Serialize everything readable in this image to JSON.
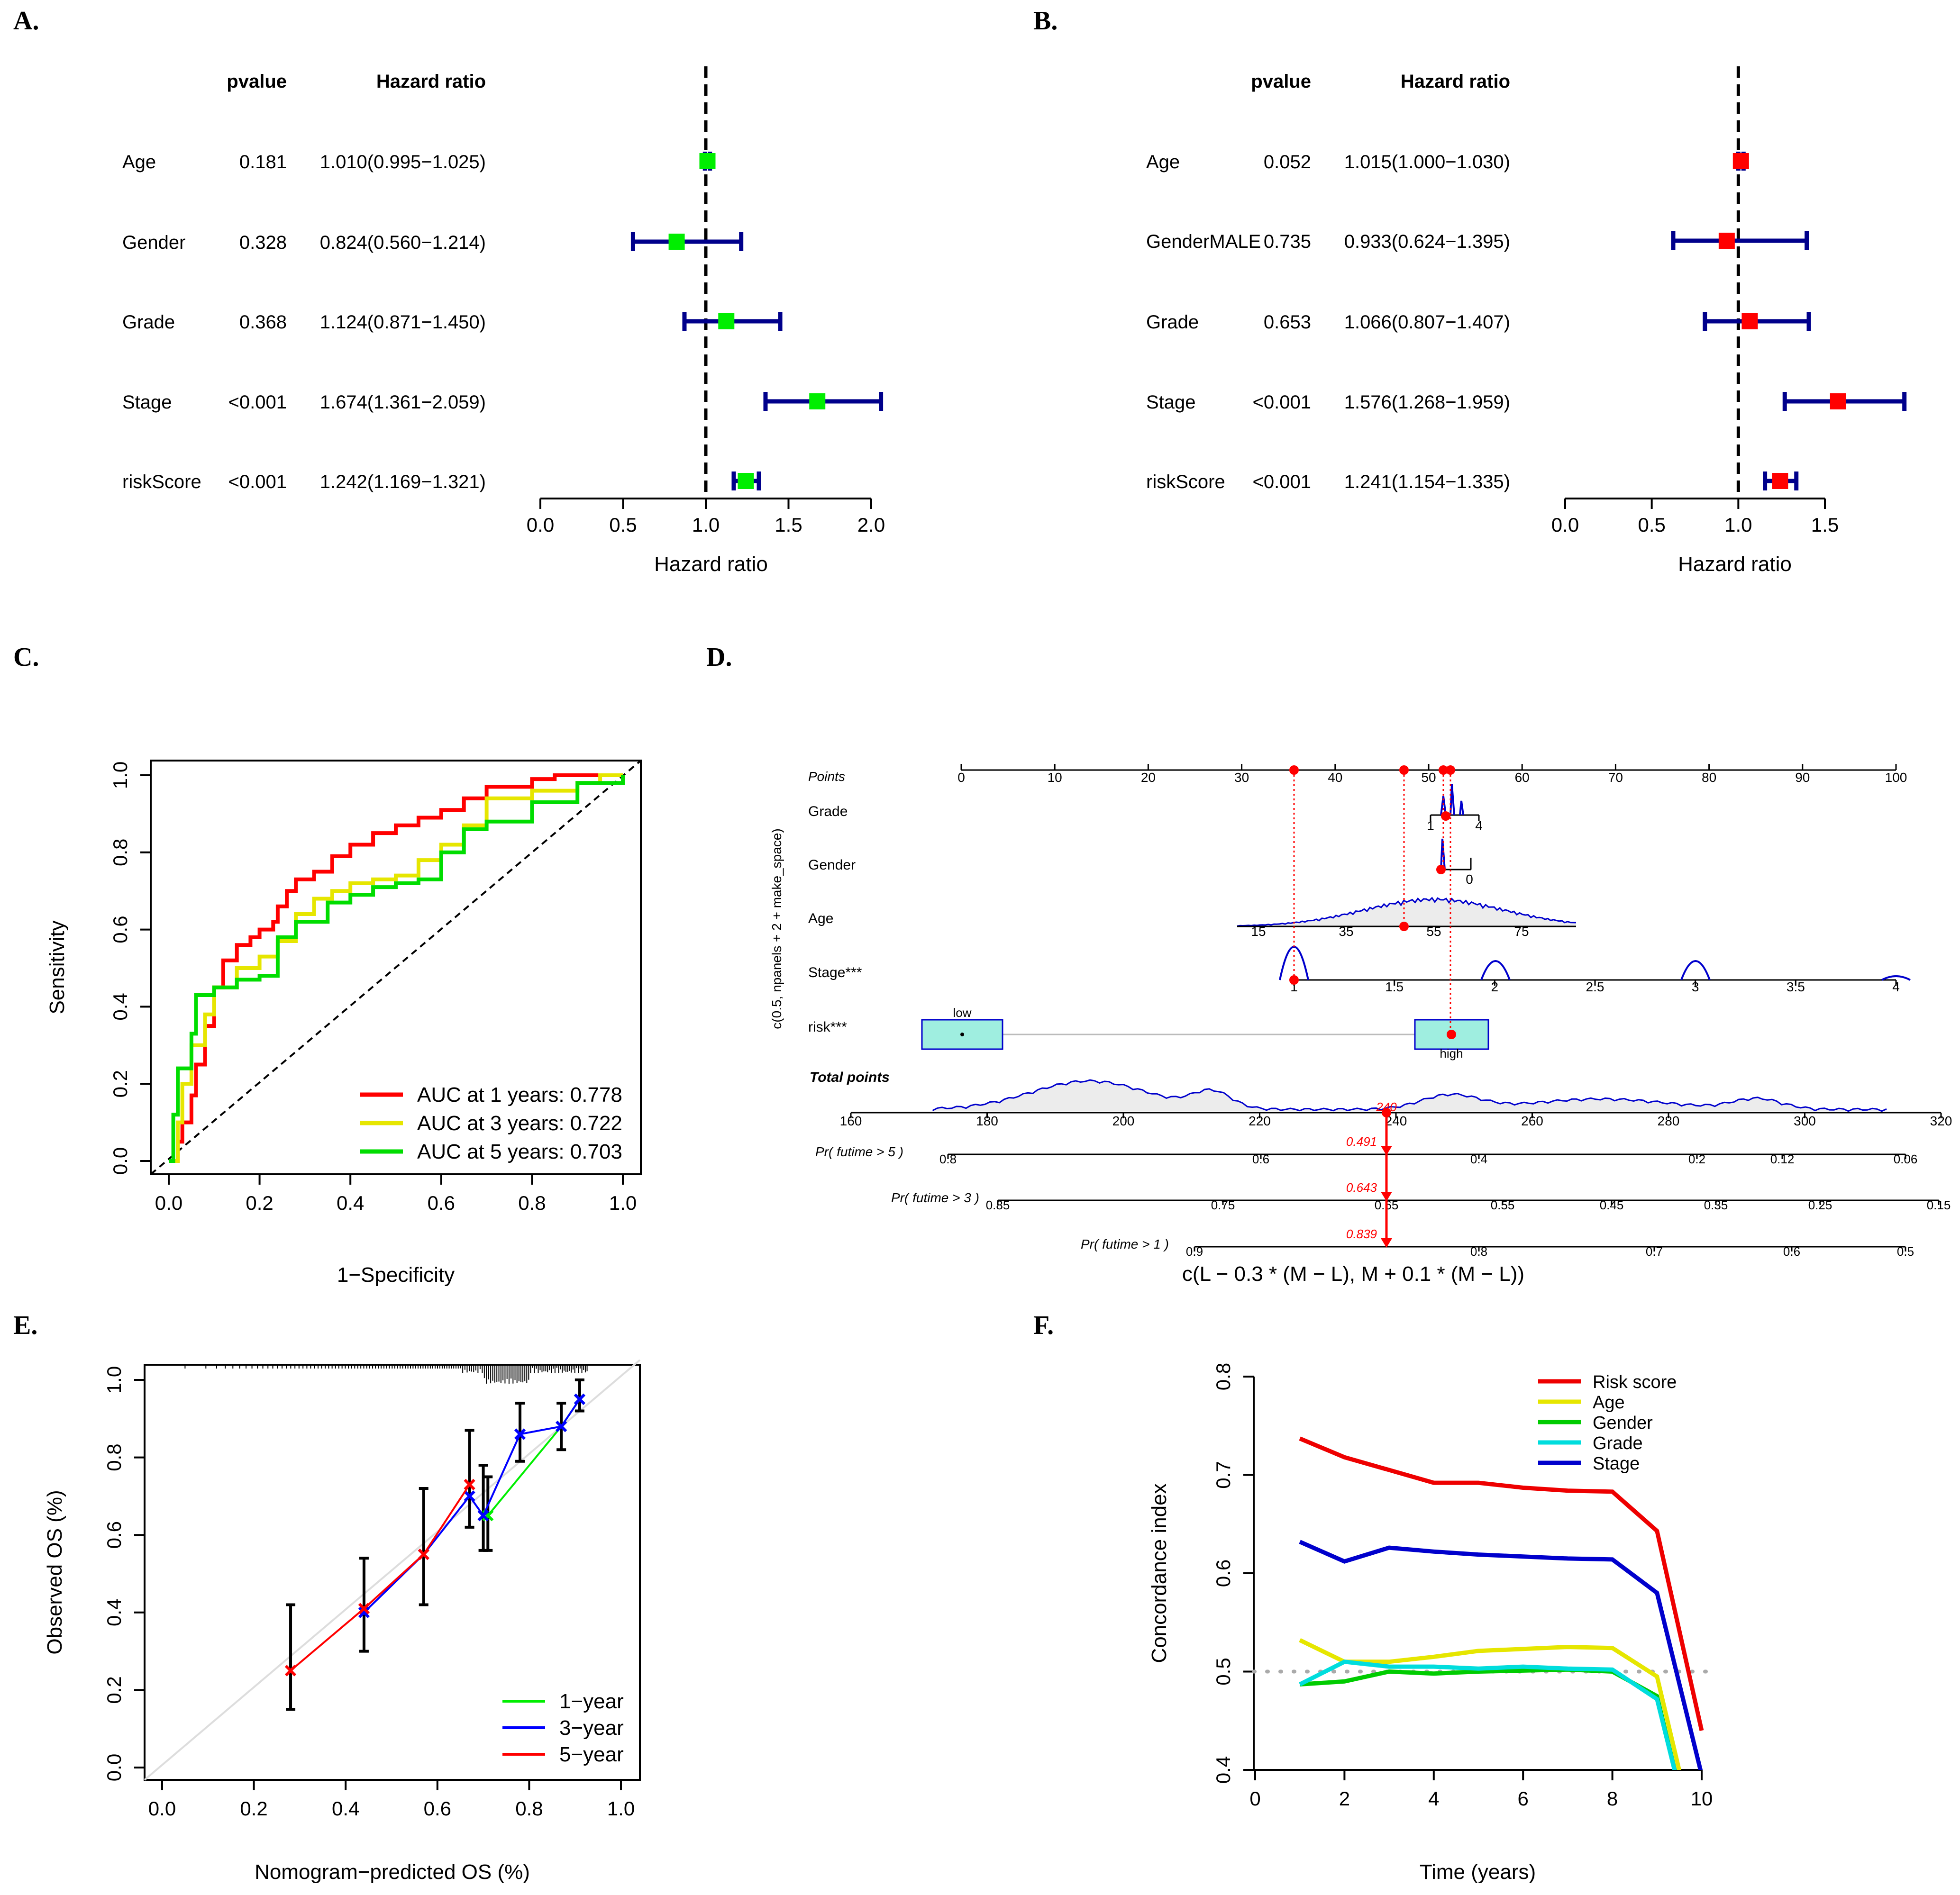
{
  "figure": {
    "panel_labels": [
      "A.",
      "B.",
      "C.",
      "D.",
      "E.",
      "F."
    ]
  },
  "chart_data": [
    {
      "panel": "A.",
      "type": "forest",
      "headers": {
        "pvalue": "pvalue",
        "hr": "Hazard ratio"
      },
      "rows": [
        {
          "label": "Age",
          "pvalue": "0.181",
          "hr_text": "1.010(0.995−1.025)",
          "hr": 1.01,
          "lo": 0.995,
          "hi": 1.025
        },
        {
          "label": "Gender",
          "pvalue": "0.328",
          "hr_text": "0.824(0.560−1.214)",
          "hr": 0.824,
          "lo": 0.56,
          "hi": 1.214
        },
        {
          "label": "Grade",
          "pvalue": "0.368",
          "hr_text": "1.124(0.871−1.450)",
          "hr": 1.124,
          "lo": 0.871,
          "hi": 1.45
        },
        {
          "label": "Stage",
          "pvalue": "<0.001",
          "hr_text": "1.674(1.361−2.059)",
          "hr": 1.674,
          "lo": 1.361,
          "hi": 2.059
        },
        {
          "label": "riskScore",
          "pvalue": "<0.001",
          "hr_text": "1.242(1.169−1.321)",
          "hr": 1.242,
          "lo": 1.169,
          "hi": 1.321
        }
      ],
      "xlim": [
        0,
        2.0
      ],
      "ticks": [
        "0.0",
        "0.5",
        "1.0",
        "1.5",
        "2.0"
      ],
      "tick_values": [
        0,
        0.5,
        1.0,
        1.5,
        2.0
      ],
      "reference": 1,
      "xlabel": "Hazard ratio",
      "colors": {
        "marker": "#00ee00",
        "ci": "#00008b"
      }
    },
    {
      "panel": "B.",
      "type": "forest",
      "headers": {
        "pvalue": "pvalue",
        "hr": "Hazard ratio"
      },
      "rows": [
        {
          "label": "Age",
          "pvalue": "0.052",
          "hr_text": "1.015(1.000−1.030)",
          "hr": 1.015,
          "lo": 1.0,
          "hi": 1.03
        },
        {
          "label": "GenderMALE",
          "pvalue": "0.735",
          "hr_text": "0.933(0.624−1.395)",
          "hr": 0.933,
          "lo": 0.624,
          "hi": 1.395
        },
        {
          "label": "Grade",
          "pvalue": "0.653",
          "hr_text": "1.066(0.807−1.407)",
          "hr": 1.066,
          "lo": 0.807,
          "hi": 1.407
        },
        {
          "label": "Stage",
          "pvalue": "<0.001",
          "hr_text": "1.576(1.268−1.959)",
          "hr": 1.576,
          "lo": 1.268,
          "hi": 1.959
        },
        {
          "label": "riskScore",
          "pvalue": "<0.001",
          "hr_text": "1.241(1.154−1.335)",
          "hr": 1.241,
          "lo": 1.154,
          "hi": 1.335
        }
      ],
      "xlim": [
        0,
        1.5
      ],
      "ticks": [
        "0.0",
        "0.5",
        "1.0",
        "1.5"
      ],
      "tick_values": [
        0,
        0.5,
        1.0,
        1.5
      ],
      "reference": 1,
      "xlabel": "Hazard ratio",
      "colors": {
        "marker": "#ff0000",
        "ci": "#00008b"
      }
    },
    {
      "panel": "C.",
      "type": "line",
      "subtype": "roc",
      "xlabel": "1−Specificity",
      "ylabel": "Sensitivity",
      "xlim": [
        0,
        1
      ],
      "ylim": [
        0,
        1
      ],
      "xticks": [
        "0.0",
        "0.2",
        "0.4",
        "0.6",
        "0.8",
        "1.0"
      ],
      "yticks": [
        "0.0",
        "0.2",
        "0.4",
        "0.6",
        "0.8",
        "1.0"
      ],
      "legend_position": "bottom-right",
      "series": [
        {
          "name": "AUC at 1 years: 0.778",
          "color": "#ff0000",
          "points": [
            [
              0,
              0
            ],
            [
              0.02,
              0.05
            ],
            [
              0.03,
              0.1
            ],
            [
              0.05,
              0.17
            ],
            [
              0.06,
              0.25
            ],
            [
              0.08,
              0.35
            ],
            [
              0.1,
              0.45
            ],
            [
              0.12,
              0.52
            ],
            [
              0.15,
              0.56
            ],
            [
              0.18,
              0.58
            ],
            [
              0.2,
              0.6
            ],
            [
              0.23,
              0.62
            ],
            [
              0.24,
              0.66
            ],
            [
              0.26,
              0.7
            ],
            [
              0.28,
              0.73
            ],
            [
              0.32,
              0.75
            ],
            [
              0.36,
              0.79
            ],
            [
              0.4,
              0.82
            ],
            [
              0.45,
              0.85
            ],
            [
              0.5,
              0.87
            ],
            [
              0.55,
              0.89
            ],
            [
              0.6,
              0.91
            ],
            [
              0.65,
              0.94
            ],
            [
              0.7,
              0.97
            ],
            [
              0.8,
              0.99
            ],
            [
              0.85,
              1.0
            ],
            [
              1,
              1
            ]
          ]
        },
        {
          "name": "AUC at 3 years: 0.722",
          "color": "#e6e600",
          "points": [
            [
              0,
              0
            ],
            [
              0.02,
              0.1
            ],
            [
              0.03,
              0.2
            ],
            [
              0.05,
              0.3
            ],
            [
              0.08,
              0.38
            ],
            [
              0.1,
              0.45
            ],
            [
              0.15,
              0.5
            ],
            [
              0.2,
              0.53
            ],
            [
              0.24,
              0.57
            ],
            [
              0.28,
              0.64
            ],
            [
              0.32,
              0.68
            ],
            [
              0.36,
              0.7
            ],
            [
              0.4,
              0.72
            ],
            [
              0.45,
              0.73
            ],
            [
              0.5,
              0.74
            ],
            [
              0.55,
              0.78
            ],
            [
              0.6,
              0.82
            ],
            [
              0.65,
              0.87
            ],
            [
              0.7,
              0.94
            ],
            [
              0.8,
              0.96
            ],
            [
              0.9,
              0.98
            ],
            [
              0.95,
              1.0
            ],
            [
              1,
              1
            ]
          ]
        },
        {
          "name": "AUC at 5 years: 0.703",
          "color": "#00dd00",
          "points": [
            [
              0,
              0
            ],
            [
              0.01,
              0.12
            ],
            [
              0.02,
              0.24
            ],
            [
              0.05,
              0.33
            ],
            [
              0.06,
              0.43
            ],
            [
              0.1,
              0.45
            ],
            [
              0.15,
              0.47
            ],
            [
              0.2,
              0.48
            ],
            [
              0.24,
              0.58
            ],
            [
              0.28,
              0.62
            ],
            [
              0.35,
              0.67
            ],
            [
              0.4,
              0.69
            ],
            [
              0.45,
              0.71
            ],
            [
              0.5,
              0.72
            ],
            [
              0.55,
              0.73
            ],
            [
              0.6,
              0.8
            ],
            [
              0.65,
              0.86
            ],
            [
              0.7,
              0.88
            ],
            [
              0.8,
              0.93
            ],
            [
              0.9,
              0.98
            ],
            [
              1,
              1
            ]
          ]
        }
      ]
    },
    {
      "panel": "D.",
      "type": "nomogram",
      "y_axis_label": "c(0.5, npanels + 2 + make_space)",
      "bottom_label": "c(L − 0.3 * (M − L), M + 0.1 * (M − L))",
      "points_label": "Points",
      "total_label": "Total points",
      "variables": [
        "Grade",
        "Gender",
        "Age",
        "Stage***",
        "risk***"
      ],
      "points_ticks": [
        "0",
        "10",
        "20",
        "30",
        "40",
        "50",
        "60",
        "70",
        "80",
        "90",
        "100"
      ],
      "grade_ticks": [
        "1",
        "4"
      ],
      "gender_ticks": [
        "0"
      ],
      "age_ticks": [
        "15",
        "35",
        "55",
        "75"
      ],
      "stage_ticks": [
        "1",
        "1.5",
        "2",
        "2.5",
        "3",
        "3.5",
        "4"
      ],
      "risk_levels": [
        "low",
        "high"
      ],
      "total_ticks": [
        "160",
        "180",
        "200",
        "220",
        "240",
        "260",
        "280",
        "300",
        "320"
      ],
      "total_marker": "240",
      "prob_scales": [
        {
          "label": "Pr( futime > 5 )",
          "ticks": [
            "0.8",
            "0.6",
            "0.4",
            "0.2",
            "0.12",
            "0.06"
          ],
          "value": "0.491"
        },
        {
          "label": "Pr( futime > 3 )",
          "ticks": [
            "0.85",
            "0.75",
            "0.65",
            "0.55",
            "0.45",
            "0.35",
            "0.25",
            "0.15"
          ],
          "value": "0.643"
        },
        {
          "label": "Pr( futime > 1 )",
          "ticks": [
            "0.9",
            "0.8",
            "0.7",
            "0.6",
            "0.5"
          ],
          "value": "0.839"
        }
      ]
    },
    {
      "panel": "E.",
      "type": "line",
      "subtype": "calibration",
      "xlabel": "Nomogram−predicted OS (%)",
      "ylabel": "Observed OS (%)",
      "xlim": [
        0,
        1
      ],
      "ylim": [
        0,
        1
      ],
      "xticks": [
        "0.0",
        "0.2",
        "0.4",
        "0.6",
        "0.8",
        "1.0"
      ],
      "yticks": [
        "0.0",
        "0.2",
        "0.4",
        "0.6",
        "0.8",
        "1.0"
      ],
      "legend_position": "bottom-right",
      "series": [
        {
          "name": "1−year",
          "color": "#00ee00",
          "points": [
            [
              0.71,
              0.65
            ],
            [
              0.87,
              0.88
            ],
            [
              0.91,
              0.95
            ]
          ]
        },
        {
          "name": "3−year",
          "color": "#0000ff",
          "points": [
            [
              0.44,
              0.4
            ],
            [
              0.57,
              0.55
            ],
            [
              0.67,
              0.7
            ],
            [
              0.7,
              0.65
            ],
            [
              0.78,
              0.86
            ],
            [
              0.87,
              0.88
            ],
            [
              0.91,
              0.95
            ]
          ]
        },
        {
          "name": "5−year",
          "color": "#ff0000",
          "points": [
            [
              0.28,
              0.25
            ],
            [
              0.44,
              0.41
            ],
            [
              0.57,
              0.55
            ],
            [
              0.67,
              0.73
            ]
          ]
        }
      ],
      "errorbars": [
        [
          0.28,
          0.15,
          0.42
        ],
        [
          0.44,
          0.3,
          0.54
        ],
        [
          0.57,
          0.42,
          0.72
        ],
        [
          0.67,
          0.62,
          0.87
        ],
        [
          0.7,
          0.56,
          0.78
        ],
        [
          0.71,
          0.56,
          0.75
        ],
        [
          0.78,
          0.79,
          0.94
        ],
        [
          0.87,
          0.82,
          0.94
        ],
        [
          0.91,
          0.92,
          1.0
        ]
      ]
    },
    {
      "panel": "F.",
      "type": "line",
      "subtype": "c-index",
      "xlabel": "Time (years)",
      "ylabel": "Concordance index",
      "xlim": [
        0,
        10
      ],
      "ylim": [
        0.4,
        0.8
      ],
      "xticks": [
        "0",
        "2",
        "4",
        "6",
        "8",
        "10"
      ],
      "yticks": [
        "0.4",
        "0.5",
        "0.6",
        "0.7",
        "0.8"
      ],
      "legend_position": "top-right",
      "reference": 0.5,
      "series": [
        {
          "name": "Risk score",
          "color": "#ee0000",
          "points": [
            [
              1,
              0.737
            ],
            [
              2,
              0.718
            ],
            [
              3,
              0.705
            ],
            [
              4,
              0.692
            ],
            [
              5,
              0.692
            ],
            [
              6,
              0.687
            ],
            [
              7,
              0.684
            ],
            [
              8,
              0.683
            ],
            [
              9,
              0.643
            ],
            [
              10,
              0.44
            ]
          ]
        },
        {
          "name": "Age",
          "color": "#e6e600",
          "points": [
            [
              1,
              0.532
            ],
            [
              2,
              0.51
            ],
            [
              3,
              0.51
            ],
            [
              4,
              0.515
            ],
            [
              5,
              0.521
            ],
            [
              6,
              0.523
            ],
            [
              7,
              0.525
            ],
            [
              8,
              0.524
            ],
            [
              9,
              0.495
            ],
            [
              9.6,
              0.38
            ]
          ]
        },
        {
          "name": "Gender",
          "color": "#00cc00",
          "points": [
            [
              1,
              0.487
            ],
            [
              2,
              0.49
            ],
            [
              3,
              0.5
            ],
            [
              4,
              0.498
            ],
            [
              5,
              0.5
            ],
            [
              6,
              0.501
            ],
            [
              7,
              0.502
            ],
            [
              8,
              0.5
            ],
            [
              9,
              0.475
            ],
            [
              9.5,
              0.38
            ]
          ]
        },
        {
          "name": "Grade",
          "color": "#00dddd",
          "points": [
            [
              1,
              0.487
            ],
            [
              2,
              0.51
            ],
            [
              3,
              0.505
            ],
            [
              4,
              0.505
            ],
            [
              5,
              0.503
            ],
            [
              6,
              0.505
            ],
            [
              7,
              0.503
            ],
            [
              8,
              0.502
            ],
            [
              9,
              0.472
            ],
            [
              9.5,
              0.38
            ]
          ]
        },
        {
          "name": "Stage",
          "color": "#0000cc",
          "points": [
            [
              1,
              0.632
            ],
            [
              2,
              0.612
            ],
            [
              3,
              0.626
            ],
            [
              4,
              0.622
            ],
            [
              5,
              0.619
            ],
            [
              6,
              0.617
            ],
            [
              7,
              0.615
            ],
            [
              8,
              0.614
            ],
            [
              9,
              0.58
            ],
            [
              10,
              0.395
            ]
          ]
        }
      ]
    }
  ]
}
